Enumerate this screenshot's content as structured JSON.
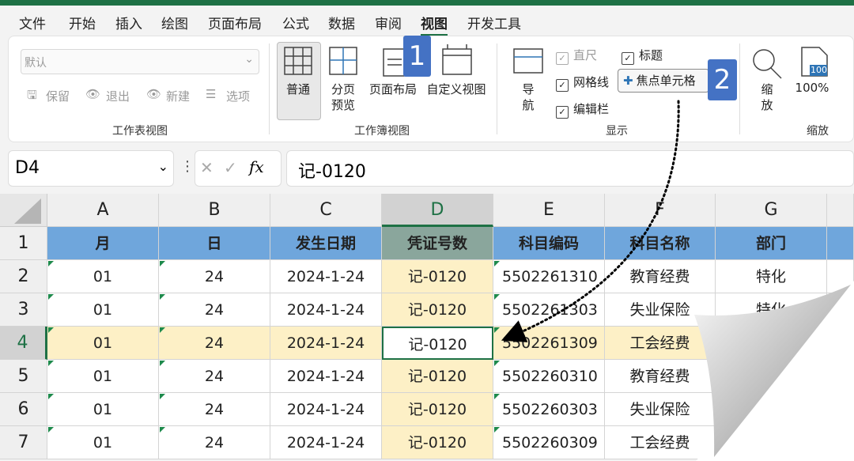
{
  "ribbon": {
    "tabs": [
      "文件",
      "开始",
      "插入",
      "绘图",
      "页面布局",
      "公式",
      "数据",
      "审阅",
      "视图",
      "开发工具"
    ],
    "sheet_view": {
      "dropdown": "默认",
      "buttons": [
        "保留",
        "退出",
        "新建",
        "选项"
      ],
      "label": "工作表视图"
    },
    "workbook_view": {
      "normal": "普通",
      "page_break": [
        "分页",
        "预览"
      ],
      "page_layout": "页面布局",
      "custom": "自定义视图",
      "label": "工作簿视图"
    },
    "show": {
      "nav": [
        "导",
        "航"
      ],
      "ruler": "直尺",
      "gridlines": "网格线",
      "formula_bar": "编辑栏",
      "headings": "标题",
      "focus_cell": "焦点单元格",
      "label": "显示"
    },
    "zoom": {
      "zoom": [
        "缩",
        "放"
      ],
      "icon_text": "100",
      "percent": "100%",
      "label": "缩放"
    }
  },
  "badges": [
    "1",
    "2"
  ],
  "formula_bar": {
    "name_box": "D4",
    "fx": "fx",
    "formula": "记-0120"
  },
  "sheet": {
    "columns": [
      "A",
      "B",
      "C",
      "D",
      "E",
      "F",
      "G"
    ],
    "row_numbers": [
      "1",
      "2",
      "3",
      "4",
      "5",
      "6",
      "7"
    ],
    "rows": [
      [
        "月",
        "日",
        "发生日期",
        "凭证号数",
        "科目编码",
        "科目名称",
        "部门"
      ],
      [
        "01",
        "24",
        "2024-1-24",
        "记-0120",
        "5502261310",
        "教育经费",
        "特化"
      ],
      [
        "01",
        "24",
        "2024-1-24",
        "记-0120",
        "5502261303",
        "失业保险",
        "特化"
      ],
      [
        "01",
        "24",
        "2024-1-24",
        "记-0120",
        "5502261309",
        "工会经费"
      ],
      [
        "01",
        "24",
        "2024-1-24",
        "记-0120",
        "5502260310",
        "教育经费"
      ],
      [
        "01",
        "24",
        "2024-1-24",
        "记-0120",
        "5502260303",
        "失业保险"
      ],
      [
        "01",
        "24",
        "2024-1-24",
        "记-0120",
        "5502260309",
        "工会经费"
      ]
    ]
  }
}
